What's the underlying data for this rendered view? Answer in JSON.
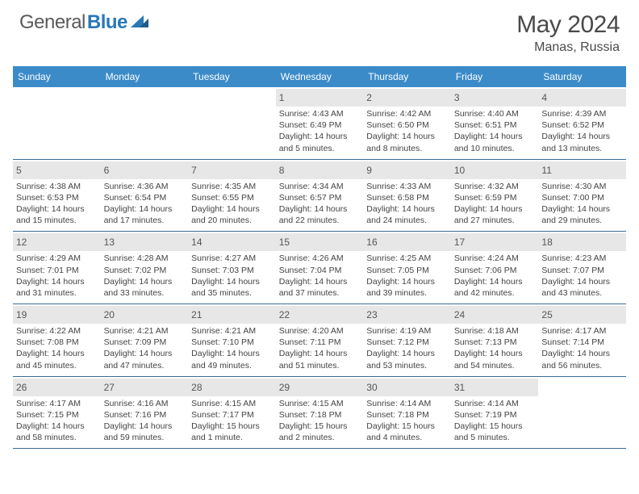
{
  "logo": {
    "part1": "General",
    "part2": "Blue"
  },
  "title": "May 2024",
  "location": "Manas, Russia",
  "colors": {
    "header_bg": "#3b8bc9",
    "header_text": "#ffffff",
    "num_bg": "#e7e7e7",
    "divider": "#3b6a94",
    "brand_blue": "#2a78b8",
    "text_gray": "#4a4a4a"
  },
  "dayNames": [
    "Sunday",
    "Monday",
    "Tuesday",
    "Wednesday",
    "Thursday",
    "Friday",
    "Saturday"
  ],
  "weeks": [
    [
      {
        "blank": true
      },
      {
        "blank": true
      },
      {
        "blank": true
      },
      {
        "n": "1",
        "sr": "Sunrise: 4:43 AM",
        "ss": "Sunset: 6:49 PM",
        "d1": "Daylight: 14 hours",
        "d2": "and 5 minutes."
      },
      {
        "n": "2",
        "sr": "Sunrise: 4:42 AM",
        "ss": "Sunset: 6:50 PM",
        "d1": "Daylight: 14 hours",
        "d2": "and 8 minutes."
      },
      {
        "n": "3",
        "sr": "Sunrise: 4:40 AM",
        "ss": "Sunset: 6:51 PM",
        "d1": "Daylight: 14 hours",
        "d2": "and 10 minutes."
      },
      {
        "n": "4",
        "sr": "Sunrise: 4:39 AM",
        "ss": "Sunset: 6:52 PM",
        "d1": "Daylight: 14 hours",
        "d2": "and 13 minutes."
      }
    ],
    [
      {
        "n": "5",
        "sr": "Sunrise: 4:38 AM",
        "ss": "Sunset: 6:53 PM",
        "d1": "Daylight: 14 hours",
        "d2": "and 15 minutes."
      },
      {
        "n": "6",
        "sr": "Sunrise: 4:36 AM",
        "ss": "Sunset: 6:54 PM",
        "d1": "Daylight: 14 hours",
        "d2": "and 17 minutes."
      },
      {
        "n": "7",
        "sr": "Sunrise: 4:35 AM",
        "ss": "Sunset: 6:55 PM",
        "d1": "Daylight: 14 hours",
        "d2": "and 20 minutes."
      },
      {
        "n": "8",
        "sr": "Sunrise: 4:34 AM",
        "ss": "Sunset: 6:57 PM",
        "d1": "Daylight: 14 hours",
        "d2": "and 22 minutes."
      },
      {
        "n": "9",
        "sr": "Sunrise: 4:33 AM",
        "ss": "Sunset: 6:58 PM",
        "d1": "Daylight: 14 hours",
        "d2": "and 24 minutes."
      },
      {
        "n": "10",
        "sr": "Sunrise: 4:32 AM",
        "ss": "Sunset: 6:59 PM",
        "d1": "Daylight: 14 hours",
        "d2": "and 27 minutes."
      },
      {
        "n": "11",
        "sr": "Sunrise: 4:30 AM",
        "ss": "Sunset: 7:00 PM",
        "d1": "Daylight: 14 hours",
        "d2": "and 29 minutes."
      }
    ],
    [
      {
        "n": "12",
        "sr": "Sunrise: 4:29 AM",
        "ss": "Sunset: 7:01 PM",
        "d1": "Daylight: 14 hours",
        "d2": "and 31 minutes."
      },
      {
        "n": "13",
        "sr": "Sunrise: 4:28 AM",
        "ss": "Sunset: 7:02 PM",
        "d1": "Daylight: 14 hours",
        "d2": "and 33 minutes."
      },
      {
        "n": "14",
        "sr": "Sunrise: 4:27 AM",
        "ss": "Sunset: 7:03 PM",
        "d1": "Daylight: 14 hours",
        "d2": "and 35 minutes."
      },
      {
        "n": "15",
        "sr": "Sunrise: 4:26 AM",
        "ss": "Sunset: 7:04 PM",
        "d1": "Daylight: 14 hours",
        "d2": "and 37 minutes."
      },
      {
        "n": "16",
        "sr": "Sunrise: 4:25 AM",
        "ss": "Sunset: 7:05 PM",
        "d1": "Daylight: 14 hours",
        "d2": "and 39 minutes."
      },
      {
        "n": "17",
        "sr": "Sunrise: 4:24 AM",
        "ss": "Sunset: 7:06 PM",
        "d1": "Daylight: 14 hours",
        "d2": "and 42 minutes."
      },
      {
        "n": "18",
        "sr": "Sunrise: 4:23 AM",
        "ss": "Sunset: 7:07 PM",
        "d1": "Daylight: 14 hours",
        "d2": "and 43 minutes."
      }
    ],
    [
      {
        "n": "19",
        "sr": "Sunrise: 4:22 AM",
        "ss": "Sunset: 7:08 PM",
        "d1": "Daylight: 14 hours",
        "d2": "and 45 minutes."
      },
      {
        "n": "20",
        "sr": "Sunrise: 4:21 AM",
        "ss": "Sunset: 7:09 PM",
        "d1": "Daylight: 14 hours",
        "d2": "and 47 minutes."
      },
      {
        "n": "21",
        "sr": "Sunrise: 4:21 AM",
        "ss": "Sunset: 7:10 PM",
        "d1": "Daylight: 14 hours",
        "d2": "and 49 minutes."
      },
      {
        "n": "22",
        "sr": "Sunrise: 4:20 AM",
        "ss": "Sunset: 7:11 PM",
        "d1": "Daylight: 14 hours",
        "d2": "and 51 minutes."
      },
      {
        "n": "23",
        "sr": "Sunrise: 4:19 AM",
        "ss": "Sunset: 7:12 PM",
        "d1": "Daylight: 14 hours",
        "d2": "and 53 minutes."
      },
      {
        "n": "24",
        "sr": "Sunrise: 4:18 AM",
        "ss": "Sunset: 7:13 PM",
        "d1": "Daylight: 14 hours",
        "d2": "and 54 minutes."
      },
      {
        "n": "25",
        "sr": "Sunrise: 4:17 AM",
        "ss": "Sunset: 7:14 PM",
        "d1": "Daylight: 14 hours",
        "d2": "and 56 minutes."
      }
    ],
    [
      {
        "n": "26",
        "sr": "Sunrise: 4:17 AM",
        "ss": "Sunset: 7:15 PM",
        "d1": "Daylight: 14 hours",
        "d2": "and 58 minutes."
      },
      {
        "n": "27",
        "sr": "Sunrise: 4:16 AM",
        "ss": "Sunset: 7:16 PM",
        "d1": "Daylight: 14 hours",
        "d2": "and 59 minutes."
      },
      {
        "n": "28",
        "sr": "Sunrise: 4:15 AM",
        "ss": "Sunset: 7:17 PM",
        "d1": "Daylight: 15 hours",
        "d2": "and 1 minute."
      },
      {
        "n": "29",
        "sr": "Sunrise: 4:15 AM",
        "ss": "Sunset: 7:18 PM",
        "d1": "Daylight: 15 hours",
        "d2": "and 2 minutes."
      },
      {
        "n": "30",
        "sr": "Sunrise: 4:14 AM",
        "ss": "Sunset: 7:18 PM",
        "d1": "Daylight: 15 hours",
        "d2": "and 4 minutes."
      },
      {
        "n": "31",
        "sr": "Sunrise: 4:14 AM",
        "ss": "Sunset: 7:19 PM",
        "d1": "Daylight: 15 hours",
        "d2": "and 5 minutes."
      },
      {
        "blank": true
      }
    ]
  ]
}
